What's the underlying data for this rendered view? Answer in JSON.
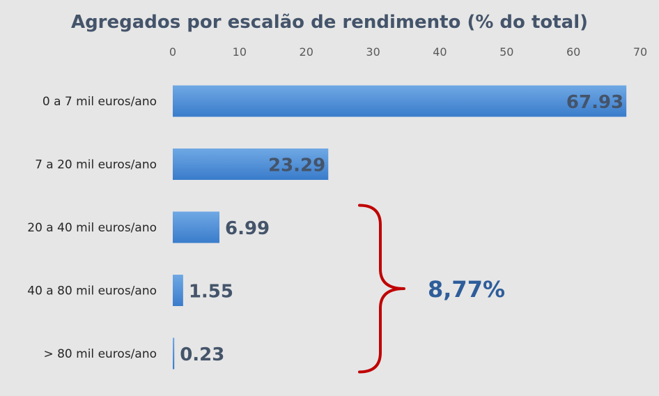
{
  "chart_data": {
    "type": "bar",
    "orientation": "horizontal",
    "title": "Agregados por escalão de rendimento (% do total)",
    "xlabel": "",
    "ylabel": "",
    "categories": [
      "0 a 7 mil euros/ano",
      "7 a 20 mil euros/ano",
      "20 a 40 mil euros/ano",
      "40 a 80 mil euros/ano",
      "> 80 mil euros/ano"
    ],
    "values": [
      67.93,
      23.29,
      6.99,
      1.55,
      0.23
    ],
    "data_labels": [
      "67.93",
      "23.29",
      "6.99",
      "1.55",
      "0.23"
    ],
    "xlim": [
      0,
      70
    ],
    "xticks": [
      0,
      10,
      20,
      30,
      40,
      50,
      60,
      70
    ],
    "xtick_labels": [
      "0",
      "10",
      "20",
      "30",
      "40",
      "50",
      "60",
      "70"
    ],
    "axis_position": "top",
    "grid": false,
    "legend": null,
    "annotation": {
      "text": "8,77%",
      "spans_categories": [
        2,
        3,
        4
      ],
      "shape": "curly-brace"
    },
    "colors": {
      "background": "#e6e6e6",
      "bar_top": "#6fa8e4",
      "bar_bottom": "#3a7ccb",
      "title": "#44546a",
      "tick_label": "#595959",
      "category_label": "#262626",
      "data_label": "#44546a",
      "brace": "#c00000",
      "annotation": "#2e5d9a"
    }
  }
}
